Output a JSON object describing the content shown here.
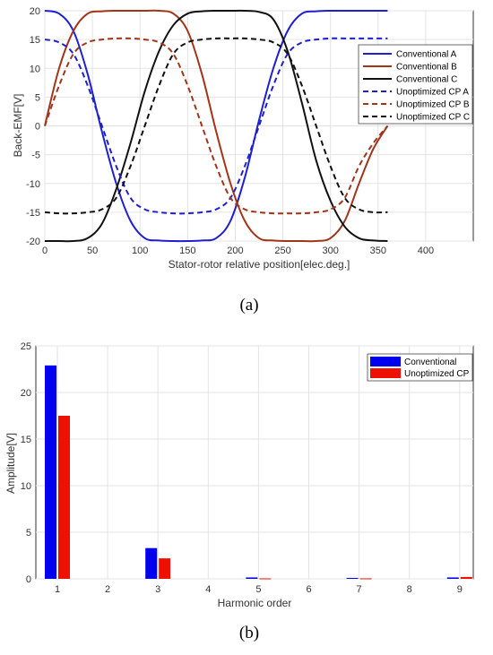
{
  "chart_data": [
    {
      "type": "line",
      "caption": "(a)",
      "xlabel": "Stator-rotor relative position[elec.deg.]",
      "ylabel": "Back-EMF[V]",
      "xlim": [
        0,
        450
      ],
      "ylim": [
        -20,
        20
      ],
      "xticks": [
        0,
        50,
        100,
        150,
        200,
        250,
        300,
        350,
        400
      ],
      "yticks": [
        -20,
        -15,
        -10,
        -5,
        0,
        5,
        10,
        15,
        20
      ],
      "grid": true,
      "legend_position": "right",
      "x": [
        0,
        15,
        30,
        45,
        60,
        75,
        90,
        105,
        120,
        135,
        150,
        165,
        180,
        195,
        210,
        225,
        240,
        255,
        270,
        285,
        300,
        315,
        330,
        345,
        360
      ],
      "series": [
        {
          "name": "Conventional A",
          "color": "#1f1fd0",
          "dash": "solid",
          "values": [
            20,
            19.5,
            16.5,
            9,
            -1,
            -10,
            -16.5,
            -19.5,
            -19.9,
            -20,
            -20,
            -19.9,
            -19.5,
            -16.5,
            -9,
            1,
            10,
            16.5,
            19.5,
            19.9,
            20,
            20,
            20,
            20,
            20
          ]
        },
        {
          "name": "Conventional B",
          "color": "#a0351a",
          "dash": "solid",
          "values": [
            0,
            10,
            16.5,
            19.5,
            19.9,
            20,
            20,
            20,
            20,
            19.5,
            16.5,
            9,
            -1,
            -10,
            -16.5,
            -19.5,
            -19.9,
            -20,
            -20,
            -20,
            -19.5,
            -16.5,
            -10,
            -4,
            0
          ]
        },
        {
          "name": "Conventional C",
          "color": "#111111",
          "dash": "solid",
          "values": [
            -20,
            -20,
            -20,
            -19.5,
            -17,
            -11,
            -3,
            6,
            13,
            17.5,
            19.5,
            19.9,
            20,
            20,
            20,
            19.8,
            18.5,
            13,
            4,
            -6,
            -13,
            -17.5,
            -19.5,
            -19.9,
            -20
          ]
        },
        {
          "name": "Unoptimized CP A",
          "color": "#1f1fd0",
          "dash": "dashed",
          "values": [
            15,
            14.5,
            12.5,
            7,
            0,
            -7,
            -12.5,
            -14.5,
            -15,
            -15.2,
            -15.2,
            -15,
            -14.5,
            -12.5,
            -7,
            0,
            7,
            12.5,
            14.5,
            15,
            15.2,
            15.2,
            15.2,
            15.2,
            15.2
          ]
        },
        {
          "name": "Unoptimized CP B",
          "color": "#a0351a",
          "dash": "dashed",
          "values": [
            0,
            7,
            12.5,
            14.5,
            15,
            15.2,
            15.2,
            15,
            14.5,
            12.5,
            7,
            0,
            -7,
            -12.5,
            -14.5,
            -15,
            -15.2,
            -15.2,
            -15.2,
            -15,
            -14.5,
            -12.5,
            -7,
            -3,
            0
          ]
        },
        {
          "name": "Unoptimized CP C",
          "color": "#111111",
          "dash": "dashed",
          "values": [
            -15,
            -15.2,
            -15.2,
            -15,
            -14.5,
            -12.5,
            -7,
            0,
            7,
            12.5,
            14.5,
            15,
            15.2,
            15.2,
            15.2,
            15,
            14.5,
            12.5,
            7,
            0,
            -7,
            -12.5,
            -14.5,
            -15,
            -15
          ]
        }
      ]
    },
    {
      "type": "bar",
      "caption": "(b)",
      "xlabel": "Harmonic order",
      "ylabel": "Amplitude[V]",
      "ylim": [
        0,
        25
      ],
      "yticks": [
        0,
        5,
        10,
        15,
        20,
        25
      ],
      "categories": [
        "1",
        "2",
        "3",
        "4",
        "5",
        "6",
        "7",
        "8",
        "9"
      ],
      "grid": true,
      "legend_position": "top-right",
      "series": [
        {
          "name": "Conventional",
          "color": "#0000ee",
          "values": [
            22.9,
            0,
            3.3,
            0,
            0.15,
            0,
            0.1,
            0,
            0.15
          ]
        },
        {
          "name": "Unoptimized CP",
          "color": "#ee1100",
          "values": [
            17.5,
            0,
            2.2,
            0,
            0.05,
            0,
            0.05,
            0,
            0.2
          ]
        }
      ]
    }
  ]
}
